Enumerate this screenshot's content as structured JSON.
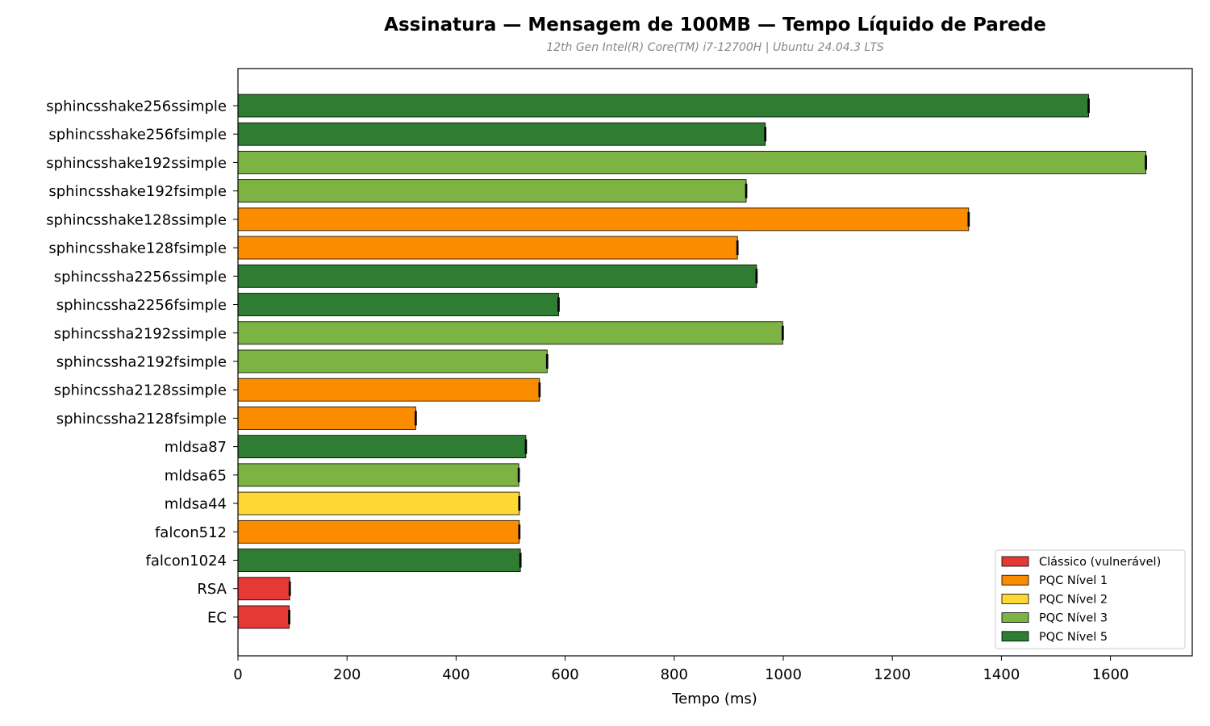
{
  "chart_data": {
    "type": "bar",
    "orientation": "horizontal",
    "title": "Assinatura — Mensagem de 100MB — Tempo Líquido de Parede",
    "subtitle": "12th Gen Intel(R) Core(TM) i7-12700H | Ubuntu 24.04.3 LTS",
    "xlabel": "Tempo (ms)",
    "ylabel": "",
    "xlim": [
      0,
      1750
    ],
    "xticks": [
      0,
      200,
      400,
      600,
      800,
      1000,
      1200,
      1400,
      1600
    ],
    "grid": false,
    "legend_position": "bottom-right",
    "groups": [
      {
        "key": "classic",
        "label": "Clássico (vulnerável)",
        "color": "#e53935"
      },
      {
        "key": "l1",
        "label": "PQC Nível 1",
        "color": "#fb8c00"
      },
      {
        "key": "l2",
        "label": "PQC Nível 2",
        "color": "#fdd835"
      },
      {
        "key": "l3",
        "label": "PQC Nível 3",
        "color": "#7cb342"
      },
      {
        "key": "l5",
        "label": "PQC Nível 5",
        "color": "#2e7d32"
      }
    ],
    "bars": [
      {
        "label": "sphincsshake256ssimple",
        "value": 1560,
        "error": 2,
        "group": "l5"
      },
      {
        "label": "sphincsshake256fsimple",
        "value": 967,
        "error": 2,
        "group": "l5"
      },
      {
        "label": "sphincsshake192ssimple",
        "value": 1665,
        "error": 2,
        "group": "l3"
      },
      {
        "label": "sphincsshake192fsimple",
        "value": 932,
        "error": 2,
        "group": "l3"
      },
      {
        "label": "sphincsshake128ssimple",
        "value": 1340,
        "error": 2,
        "group": "l1"
      },
      {
        "label": "sphincsshake128fsimple",
        "value": 916,
        "error": 2,
        "group": "l1"
      },
      {
        "label": "sphincssha2256ssimple",
        "value": 951,
        "error": 2,
        "group": "l5"
      },
      {
        "label": "sphincssha2256fsimple",
        "value": 588,
        "error": 2,
        "group": "l5"
      },
      {
        "label": "sphincssha2192ssimple",
        "value": 999,
        "error": 2,
        "group": "l3"
      },
      {
        "label": "sphincssha2192fsimple",
        "value": 567,
        "error": 2,
        "group": "l3"
      },
      {
        "label": "sphincssha2128ssimple",
        "value": 553,
        "error": 2,
        "group": "l1"
      },
      {
        "label": "sphincssha2128fsimple",
        "value": 326,
        "error": 2,
        "group": "l1"
      },
      {
        "label": "mldsa87",
        "value": 528,
        "error": 2,
        "group": "l5"
      },
      {
        "label": "mldsa65",
        "value": 515,
        "error": 2,
        "group": "l3"
      },
      {
        "label": "mldsa44",
        "value": 516,
        "error": 2,
        "group": "l2"
      },
      {
        "label": "falcon512",
        "value": 516,
        "error": 2,
        "group": "l1"
      },
      {
        "label": "falcon1024",
        "value": 518,
        "error": 2,
        "group": "l5"
      },
      {
        "label": "RSA",
        "value": 95,
        "error": 2,
        "group": "classic"
      },
      {
        "label": "EC",
        "value": 94,
        "error": 2,
        "group": "classic"
      }
    ]
  }
}
